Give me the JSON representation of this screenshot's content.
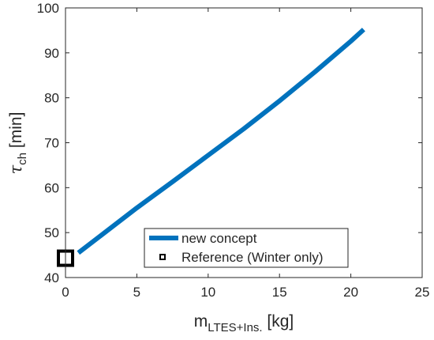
{
  "chart_data": {
    "type": "line",
    "title": "",
    "xlabel": {
      "main": "m",
      "sub": "LTES+Ins.",
      "unit": " [kg]"
    },
    "ylabel": {
      "main": "τ",
      "sub": "ch",
      "unit": " [min]"
    },
    "xlim": [
      0,
      25
    ],
    "ylim": [
      40,
      100
    ],
    "xticks": [
      0,
      5,
      10,
      15,
      20,
      25
    ],
    "yticks": [
      40,
      50,
      60,
      70,
      80,
      90,
      100
    ],
    "grid": false,
    "legend_position": "bottom-right",
    "series": [
      {
        "name": "new concept",
        "kind": "line",
        "color": "#0072BD",
        "x": [
          0.9,
          2.5,
          5,
          7.5,
          10,
          12.5,
          15,
          17.5,
          20,
          20.9
        ],
        "y": [
          45.5,
          49.4,
          55.5,
          61.3,
          67.2,
          73.1,
          79.3,
          85.8,
          92.6,
          95.2
        ]
      },
      {
        "name": "Reference (Winter only)",
        "kind": "marker",
        "marker": "square",
        "color": "#000000",
        "x": [
          0
        ],
        "y": [
          44.3
        ]
      }
    ]
  }
}
